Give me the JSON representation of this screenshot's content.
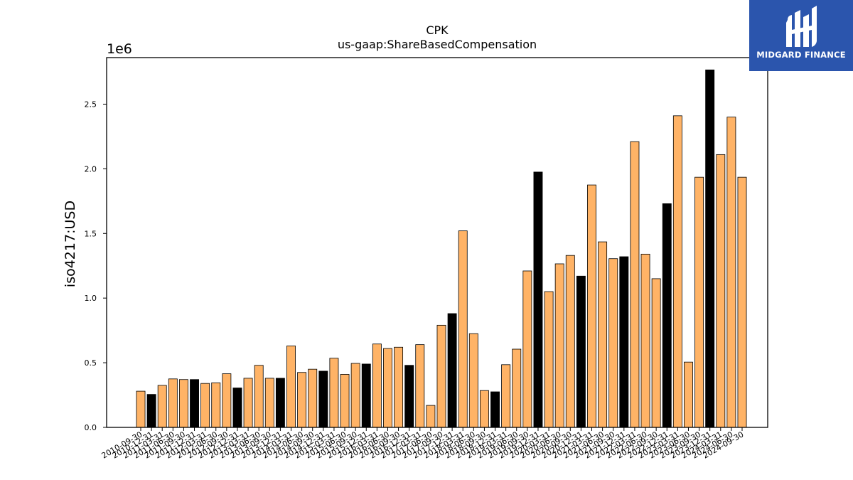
{
  "chart_data": {
    "type": "bar",
    "title": "CPK",
    "subtitle": "us-gaap:ShareBasedCompensation",
    "ylabel": "iso4217:USD",
    "y_offset_text": "1e6",
    "ylim": [
      0,
      2860000
    ],
    "yticks": [
      0.0,
      0.5,
      1.0,
      1.5,
      2.0,
      2.5
    ],
    "ytick_labels": [
      "0.0",
      "0.5",
      "1.0",
      "1.5",
      "2.0",
      "2.5"
    ],
    "colors": {
      "quarter": "#ffb366",
      "annual": "#000000",
      "edge": "#000000"
    },
    "categories": [
      "2010-09-30",
      "2010-12-31",
      "2011-03-31",
      "2011-06-30",
      "2011-09-30",
      "2011-12-31",
      "2012-03-31",
      "2012-06-30",
      "2012-09-30",
      "2012-12-31",
      "2013-03-31",
      "2013-06-30",
      "2013-09-30",
      "2013-12-31",
      "2014-03-31",
      "2014-06-30",
      "2014-09-30",
      "2014-12-31",
      "2015-03-31",
      "2015-06-30",
      "2015-09-30",
      "2015-12-31",
      "2016-03-31",
      "2016-06-30",
      "2016-09-30",
      "2016-12-31",
      "2017-03-31",
      "2017-06-30",
      "2017-09-30",
      "2017-12-31",
      "2018-03-31",
      "2018-06-30",
      "2018-09-30",
      "2018-12-31",
      "2019-03-31",
      "2019-06-30",
      "2019-09-30",
      "2019-12-31",
      "2020-03-31",
      "2020-06-30",
      "2020-09-30",
      "2020-12-31",
      "2021-03-31",
      "2021-06-30",
      "2021-09-30",
      "2021-12-31",
      "2022-03-31",
      "2022-06-30",
      "2022-09-30",
      "2022-12-31",
      "2023-03-31",
      "2023-06-30",
      "2023-09-30",
      "2023-12-31",
      "2024-03-31",
      "2024-06-30",
      "2024-09-30"
    ],
    "values": [
      280000,
      255000,
      325000,
      375000,
      370000,
      370000,
      340000,
      345000,
      415000,
      305000,
      380000,
      480000,
      380000,
      380000,
      630000,
      425000,
      450000,
      435000,
      535000,
      410000,
      495000,
      490000,
      645000,
      610000,
      620000,
      480000,
      640000,
      170000,
      790000,
      880000,
      1520000,
      725000,
      285000,
      275000,
      485000,
      605000,
      1210000,
      1975000,
      1050000,
      1265000,
      1330000,
      1170000,
      1875000,
      1435000,
      1305000,
      1320000,
      2210000,
      1340000,
      1150000,
      1730000,
      2410000,
      505000,
      1935000,
      2765000,
      2110000,
      2400000,
      1935000
    ],
    "annual": [
      false,
      true,
      false,
      false,
      false,
      true,
      false,
      false,
      false,
      true,
      false,
      false,
      false,
      true,
      false,
      false,
      false,
      true,
      false,
      false,
      false,
      true,
      false,
      false,
      false,
      true,
      false,
      false,
      false,
      true,
      false,
      false,
      false,
      true,
      false,
      false,
      false,
      true,
      false,
      false,
      false,
      true,
      false,
      false,
      false,
      true,
      false,
      false,
      false,
      true,
      false,
      false,
      false,
      true,
      false,
      false,
      false
    ]
  },
  "logo": {
    "text": "MIDGARD FINANCE",
    "background": "#2b55ad"
  }
}
